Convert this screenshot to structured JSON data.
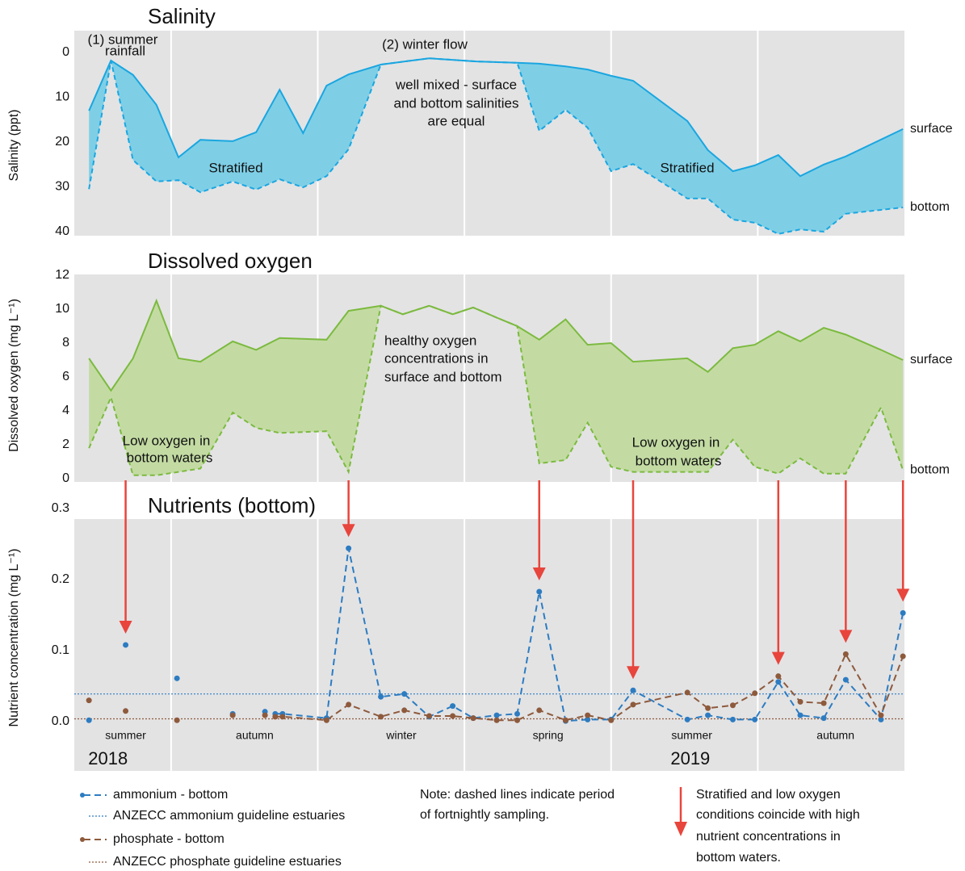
{
  "chart_data": [
    {
      "type": "range-area",
      "title": "Salinity",
      "y_label": "Salinity (ppt)",
      "xlim": [
        0.34,
        6
      ],
      "xgrid": [
        1,
        2,
        3,
        4,
        5
      ],
      "ylim": [
        0,
        40
      ],
      "y_inverted": true,
      "yticks": [
        0,
        10,
        20,
        30,
        40
      ],
      "x": [
        0.44,
        0.59,
        0.74,
        0.9,
        1.05,
        1.2,
        1.42,
        1.58,
        1.74,
        1.9,
        2.06,
        2.21,
        2.43,
        2.76,
        3.08,
        3.36,
        3.51,
        3.69,
        3.84,
        4.0,
        4.15,
        4.52,
        4.66,
        4.83,
        4.98,
        5.14,
        5.29,
        5.45,
        5.6,
        5.99
      ],
      "fill_color": "#7ecfe6",
      "series": [
        {
          "name": "surface",
          "color": "#1aa6e0",
          "values": [
            13.0,
            1.8,
            5.0,
            11.7,
            23.4,
            19.5,
            19.8,
            17.8,
            8.3,
            18.0,
            7.4,
            4.9,
            2.7,
            1.3,
            2.0,
            2.3,
            2.5,
            3.1,
            3.8,
            5.2,
            6.3,
            15.3,
            21.8,
            26.5,
            25.2,
            22.9,
            27.6,
            25.0,
            23.2,
            17.1
          ]
        },
        {
          "name": "bottom",
          "color": "#1aa6e0",
          "values": [
            30.5,
            1.8,
            24.0,
            28.8,
            28.5,
            31.2,
            28.8,
            30.6,
            28.3,
            30.1,
            27.6,
            21.6,
            2.7,
            1.3,
            2.0,
            2.3,
            17.5,
            12.8,
            16.8,
            26.5,
            24.9,
            32.6,
            32.6,
            37.3,
            38.0,
            40.5,
            39.5,
            40.0,
            36.0,
            34.6
          ]
        }
      ],
      "annotations": [
        [
          "(1) summer",
          "rainfall"
        ],
        [
          "(2) winter flow"
        ],
        [
          "well mixed - surface",
          "and bottom salinities",
          "are equal"
        ],
        [
          "Stratified"
        ],
        [
          "Stratified"
        ]
      ]
    },
    {
      "type": "range-area",
      "title": "Dissolved oxygen",
      "y_label": "Dissolved oxygen (mg L⁻¹)",
      "xlim": [
        0.34,
        6
      ],
      "xgrid": [
        1,
        2,
        3,
        4,
        5
      ],
      "ylim": [
        0,
        12
      ],
      "yticks": [
        0,
        2,
        4,
        6,
        8,
        10,
        12
      ],
      "x": [
        0.44,
        0.59,
        0.74,
        0.9,
        1.05,
        1.2,
        1.42,
        1.58,
        1.74,
        2.06,
        2.21,
        2.43,
        2.58,
        2.76,
        2.92,
        3.06,
        3.22,
        3.36,
        3.51,
        3.69,
        3.84,
        4.0,
        4.15,
        4.52,
        4.66,
        4.83,
        4.98,
        5.14,
        5.29,
        5.45,
        5.6,
        5.84,
        5.99
      ],
      "fill_color": "#c3dba3",
      "series": [
        {
          "name": "surface",
          "color": "#7cba3f",
          "values": [
            7.1,
            5.2,
            7.1,
            10.5,
            7.1,
            6.9,
            8.1,
            7.6,
            8.3,
            8.2,
            9.9,
            10.2,
            9.7,
            10.2,
            9.7,
            10.1,
            9.5,
            9.0,
            8.2,
            9.4,
            7.9,
            8.0,
            6.9,
            7.1,
            6.3,
            7.7,
            7.9,
            8.7,
            8.1,
            8.9,
            8.5,
            7.6,
            7.0
          ]
        },
        {
          "name": "bottom",
          "color": "#7cba3f",
          "values": [
            1.8,
            4.8,
            0.2,
            0.2,
            0.4,
            0.6,
            3.9,
            3.0,
            2.7,
            2.8,
            0.4,
            10.2,
            9.7,
            10.2,
            9.7,
            10.1,
            9.5,
            9.0,
            0.9,
            1.1,
            3.3,
            0.7,
            0.4,
            0.4,
            0.4,
            2.3,
            0.7,
            0.3,
            1.2,
            0.3,
            0.3,
            4.2,
            0.5
          ]
        }
      ],
      "annotations": [
        [
          "healthy oxygen",
          "concentrations in",
          "surface and bottom"
        ],
        [
          "Low oxygen in",
          "bottom waters"
        ],
        [
          "Low oxygen in",
          "bottom waters"
        ]
      ]
    },
    {
      "type": "line",
      "title": "Nutrients (bottom)",
      "y_label": "Nutrient concentration (mg L⁻¹)",
      "xlim": [
        0.34,
        6
      ],
      "xgrid": [
        1,
        2,
        3,
        4,
        5
      ],
      "ylim": [
        0,
        0.3
      ],
      "yticks": [
        {
          "value": 0,
          "label": "0.0"
        },
        0.1,
        0.2,
        0.3
      ],
      "x": [
        0.44,
        0.69,
        1.04,
        1.42,
        1.64,
        1.71,
        1.76,
        2.06,
        2.21,
        2.43,
        2.59,
        2.76,
        2.92,
        3.06,
        3.22,
        3.36,
        3.51,
        3.69,
        3.84,
        4.0,
        4.15,
        4.52,
        4.66,
        4.83,
        4.98,
        5.14,
        5.29,
        5.45,
        5.6,
        5.84,
        5.99
      ],
      "fortnightly_sampling_start": 1.71,
      "series": [
        {
          "name": "ammonium - bottom",
          "color": "#2d7cc1",
          "values": [
            0.002,
            0.108,
            0.061,
            0.011,
            0.014,
            0.011,
            0.011,
            0.005,
            0.244,
            0.035,
            0.039,
            0.007,
            0.022,
            0.005,
            0.009,
            0.011,
            0.183,
            0.001,
            0.003,
            0.003,
            0.044,
            0.003,
            0.009,
            0.003,
            0.003,
            0.056,
            0.009,
            0.005,
            0.059,
            0.003,
            0.153
          ]
        },
        {
          "name": "phosphate - bottom",
          "color": "#8e5a3c",
          "values": [
            0.03,
            0.015,
            0.002,
            0.009,
            0.009,
            0.007,
            0.007,
            0.002,
            0.024,
            0.007,
            0.016,
            0.008,
            0.008,
            0.005,
            0.002,
            0.002,
            0.016,
            0.002,
            0.009,
            0.002,
            0.024,
            0.041,
            0.019,
            0.023,
            0.04,
            0.064,
            0.028,
            0.026,
            0.095,
            0.009,
            0.092
          ]
        }
      ],
      "guidelines": [
        {
          "name": "ANZECC ammonium guideline estuaries",
          "value": 0.039,
          "color": "#2d7cc1"
        },
        {
          "name": "ANZECC phosphate guideline estuaries",
          "value": 0.004,
          "color": "#8e5a3c"
        }
      ],
      "season_labels": [
        {
          "value": 0.69,
          "label": "summer"
        },
        {
          "value": 1.57,
          "label": "autumn"
        },
        {
          "value": 2.57,
          "label": "winter"
        },
        {
          "value": 3.57,
          "label": "spring"
        },
        {
          "value": 4.55,
          "label": "summer"
        },
        {
          "value": 5.53,
          "label": "autumn"
        }
      ],
      "year_labels": [
        {
          "value": 0.57,
          "label": "2018"
        },
        {
          "value": 4.54,
          "label": "2019"
        }
      ],
      "arrows": {
        "color": "#e8453c",
        "x": [
          0.69,
          2.21,
          3.51,
          4.15,
          5.14,
          5.6,
          5.99
        ]
      }
    }
  ],
  "notes": {
    "fortnightly": [
      "Note: dashed lines indicate period",
      "of fortnightly sampling."
    ],
    "arrow": [
      "Stratified and low oxygen",
      "conditions coincide with high",
      "nutrient concentrations in",
      "bottom waters."
    ]
  }
}
